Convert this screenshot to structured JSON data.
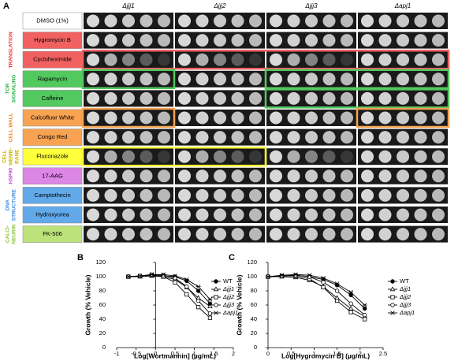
{
  "panel_a": {
    "label": "A",
    "columns": [
      "Δjjj1",
      "Δjjj2",
      "Δjjj3",
      "Δapj1"
    ],
    "rows": [
      {
        "label": "DMSO (1%)",
        "color": "#ffffff"
      },
      {
        "label": "Hygromycin B",
        "color": "#f26161"
      },
      {
        "label": "Cycloheximide",
        "color": "#f26161"
      },
      {
        "label": "Rapamycin",
        "color": "#52c95e"
      },
      {
        "label": "Caffeine",
        "color": "#52c95e"
      },
      {
        "label": "Calcofluor White",
        "color": "#f8a352"
      },
      {
        "label": "Congo Red",
        "color": "#f8a352"
      },
      {
        "label": "Fluconazole",
        "color": "#ffff3c"
      },
      {
        "label": "17-AAG",
        "color": "#dc86e6"
      },
      {
        "label": "Camptothecin",
        "color": "#62a9ea"
      },
      {
        "label": "Hydroxyurea",
        "color": "#62a9ea"
      },
      {
        "label": "FK-506",
        "color": "#bce27a"
      }
    ],
    "groups": [
      {
        "lines": [
          "TRANSLATION"
        ],
        "color": "#e8383a"
      },
      {
        "lines": [
          "TOR",
          "SIGNALING"
        ],
        "color": "#2fb24a"
      },
      {
        "lines": [
          "CELL WALL"
        ],
        "color": "#f08a2a"
      },
      {
        "lines": [
          "CELL",
          "MEMB-",
          "RANE"
        ],
        "color": "#c9b400"
      },
      {
        "lines": [
          "HSP90"
        ],
        "color": "#c54ad2"
      },
      {
        "lines": [
          "DNA",
          "STRUCTURE"
        ],
        "color": "#3d8de0"
      },
      {
        "lines": [
          "CALCI-",
          "NEURIN"
        ],
        "color": "#8cc63f"
      }
    ]
  },
  "chart_data": [
    {
      "type": "line",
      "label": "B",
      "x_label": "Log[Wortmannin] (µg/mL)",
      "y_label": "Growth (% Vehicle)",
      "x": [
        -0.7,
        -0.4,
        -0.1,
        0.2,
        0.5,
        0.8,
        1.1,
        1.4
      ],
      "xlim": [
        -1,
        2
      ],
      "xticks": [
        -1,
        -0.5,
        0,
        0.5,
        1,
        1.5,
        2
      ],
      "ylim": [
        0,
        120
      ],
      "yticks": [
        0,
        20,
        40,
        60,
        80,
        100,
        120
      ],
      "series": [
        {
          "name": "WT",
          "color": "#000000",
          "marker": "filled-circle",
          "values": [
            100,
            101,
            102,
            101,
            100,
            94,
            80,
            62
          ]
        },
        {
          "name": "Δjjj1",
          "color": "#000000",
          "marker": "triangle",
          "values": [
            100,
            100,
            101,
            100,
            96,
            85,
            70,
            58
          ]
        },
        {
          "name": "Δjjj2",
          "color": "#000000",
          "marker": "square",
          "values": [
            100,
            101,
            102,
            100,
            92,
            75,
            57,
            42
          ]
        },
        {
          "name": "Δjjj3",
          "color": "#000000",
          "marker": "circle",
          "values": [
            100,
            101,
            103,
            102,
            98,
            86,
            66,
            48
          ]
        },
        {
          "name": "Δapj1",
          "color": "#000000",
          "marker": "star",
          "values": [
            100,
            101,
            103,
            103,
            101,
            96,
            86,
            68
          ]
        }
      ]
    },
    {
      "type": "line",
      "label": "C",
      "x_label": "Log[Hygromycin B] (µg/mL)",
      "y_label": "Growth (% Vehicle)",
      "x": [
        0,
        0.3,
        0.6,
        0.9,
        1.2,
        1.5,
        1.8,
        2.1
      ],
      "xlim": [
        0,
        2.5
      ],
      "xticks": [
        0,
        0.5,
        1,
        1.5,
        2,
        2.5
      ],
      "ylim": [
        0,
        120
      ],
      "yticks": [
        0,
        20,
        40,
        60,
        80,
        100,
        120
      ],
      "series": [
        {
          "name": "WT",
          "color": "#000000",
          "marker": "filled-circle",
          "values": [
            100,
            101,
            102,
            100,
            96,
            88,
            74,
            55
          ]
        },
        {
          "name": "Δjjj1",
          "color": "#000000",
          "marker": "triangle",
          "values": [
            100,
            100,
            99,
            95,
            86,
            70,
            55,
            44
          ]
        },
        {
          "name": "Δjjj2",
          "color": "#000000",
          "marker": "square",
          "values": [
            100,
            101,
            101,
            97,
            85,
            66,
            50,
            40
          ]
        },
        {
          "name": "Δjjj3",
          "color": "#000000",
          "marker": "circle",
          "values": [
            100,
            101,
            102,
            100,
            92,
            80,
            62,
            46
          ]
        },
        {
          "name": "Δapj1",
          "color": "#000000",
          "marker": "star",
          "values": [
            100,
            102,
            103,
            102,
            98,
            90,
            78,
            60
          ]
        }
      ]
    }
  ]
}
